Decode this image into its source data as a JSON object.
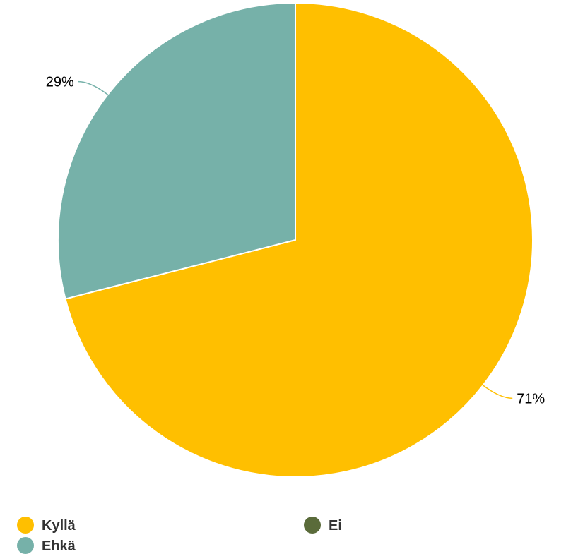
{
  "chart_data": {
    "type": "pie",
    "series": [
      {
        "name": "",
        "slices": [
          {
            "label": "Kyllä",
            "value": 71,
            "value_label": "71%",
            "color": "#FFBF00"
          },
          {
            "label": "Ehkä",
            "value": 29,
            "value_label": "29%",
            "color": "#76B1A9"
          },
          {
            "label": "Ei",
            "value": 0,
            "value_label": "",
            "color": "#5A6B3A"
          }
        ]
      }
    ],
    "legend": {
      "placement": "bottom",
      "entries": [
        {
          "label": "Kyllä",
          "color": "#FFBF00"
        },
        {
          "label": "Ehkä",
          "color": "#76B1A9"
        },
        {
          "label": "Ei",
          "color": "#5A6B3A"
        }
      ]
    },
    "start_angle_deg": 0,
    "direction": "clockwise",
    "slice_border_color": "#FFFFFF"
  }
}
